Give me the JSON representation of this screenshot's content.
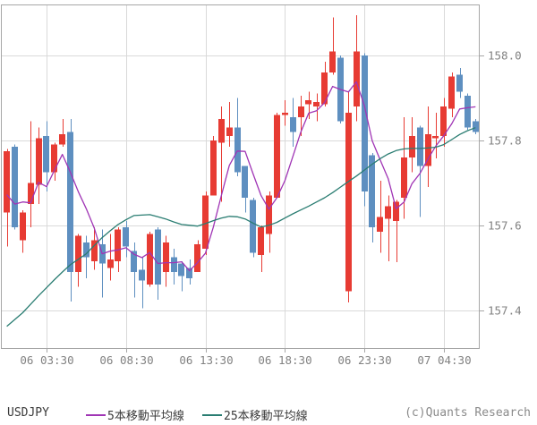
{
  "chart_data": {
    "type": "candlestick",
    "symbol": "USDJPY",
    "bar_interval_minutes": 30,
    "grid": true,
    "legend_position": "bottom",
    "ylim": [
      157.309,
      158.12
    ],
    "y_ticks": [
      158.0,
      157.8,
      157.6,
      157.4
    ],
    "y_tick_labels": [
      "158.0",
      "157.8",
      "157.6",
      "157.4"
    ],
    "x_tick_labels": [
      "06 03:30",
      "06 08:30",
      "06 13:30",
      "06 18:30",
      "06 23:30",
      "07 04:30"
    ],
    "x_tick_bar_indices": [
      5,
      15,
      25,
      35,
      45,
      55
    ],
    "colors": {
      "up": "#e73b33",
      "down": "#5e8fc0",
      "ma5": "#a035b5",
      "ma25": "#2a7d72",
      "grid": "#d9d9d9",
      "frame": "#a6a6a6",
      "tick_text": "#828282"
    },
    "candles": [
      [
        157.63,
        157.78,
        157.55,
        157.775
      ],
      [
        157.785,
        157.79,
        157.59,
        157.595
      ],
      [
        157.565,
        157.635,
        157.535,
        157.63
      ],
      [
        157.65,
        157.845,
        157.595,
        157.7
      ],
      [
        157.695,
        157.83,
        157.65,
        157.805
      ],
      [
        157.81,
        157.845,
        157.68,
        157.725
      ],
      [
        157.725,
        157.795,
        157.705,
        157.79
      ],
      [
        157.79,
        157.85,
        157.785,
        157.815
      ],
      [
        157.82,
        157.85,
        157.42,
        157.49
      ],
      [
        157.49,
        157.58,
        157.455,
        157.575
      ],
      [
        157.56,
        157.575,
        157.475,
        157.525
      ],
      [
        157.515,
        157.595,
        157.495,
        157.565
      ],
      [
        157.555,
        157.59,
        157.43,
        157.51
      ],
      [
        157.5,
        157.58,
        157.47,
        157.52
      ],
      [
        157.515,
        157.595,
        157.49,
        157.59
      ],
      [
        157.595,
        157.61,
        157.525,
        157.55
      ],
      [
        157.54,
        157.56,
        157.43,
        157.49
      ],
      [
        157.495,
        157.525,
        157.405,
        157.47
      ],
      [
        157.46,
        157.585,
        157.455,
        157.58
      ],
      [
        157.59,
        157.595,
        157.425,
        157.46
      ],
      [
        157.49,
        157.575,
        157.455,
        157.56
      ],
      [
        157.525,
        157.545,
        157.46,
        157.49
      ],
      [
        157.51,
        157.515,
        157.445,
        157.48
      ],
      [
        157.5,
        157.52,
        157.46,
        157.475
      ],
      [
        157.49,
        157.565,
        157.49,
        157.555
      ],
      [
        157.545,
        157.68,
        157.53,
        157.67
      ],
      [
        157.67,
        157.81,
        157.67,
        157.8
      ],
      [
        157.795,
        157.88,
        157.655,
        157.85
      ],
      [
        157.81,
        157.89,
        157.785,
        157.83
      ],
      [
        157.83,
        157.9,
        157.715,
        157.725
      ],
      [
        157.74,
        157.74,
        157.63,
        157.665
      ],
      [
        157.66,
        157.665,
        157.525,
        157.535
      ],
      [
        157.53,
        157.6,
        157.49,
        157.595
      ],
      [
        157.58,
        157.68,
        157.535,
        157.67
      ],
      [
        157.665,
        157.865,
        157.665,
        157.86
      ],
      [
        157.86,
        157.895,
        157.835,
        157.865
      ],
      [
        157.855,
        157.9,
        157.785,
        157.82
      ],
      [
        157.855,
        157.905,
        157.81,
        157.88
      ],
      [
        157.885,
        157.915,
        157.85,
        157.895
      ],
      [
        157.88,
        157.91,
        157.845,
        157.89
      ],
      [
        157.885,
        157.985,
        157.88,
        157.96
      ],
      [
        157.96,
        158.09,
        157.955,
        158.01
      ],
      [
        157.995,
        158.0,
        157.84,
        157.845
      ],
      [
        157.445,
        157.915,
        157.418,
        157.865
      ],
      [
        157.88,
        158.095,
        157.845,
        158.01
      ],
      [
        158.0,
        158.005,
        157.645,
        157.68
      ],
      [
        157.765,
        157.77,
        157.56,
        157.595
      ],
      [
        157.585,
        157.705,
        157.535,
        157.62
      ],
      [
        157.615,
        157.67,
        157.515,
        157.645
      ],
      [
        157.61,
        157.66,
        157.513,
        157.655
      ],
      [
        157.665,
        157.855,
        157.615,
        157.76
      ],
      [
        157.76,
        157.855,
        157.725,
        157.81
      ],
      [
        157.83,
        157.835,
        157.62,
        157.74
      ],
      [
        157.74,
        157.88,
        157.69,
        157.815
      ],
      [
        157.805,
        157.865,
        157.758,
        157.81
      ],
      [
        157.81,
        157.9,
        157.785,
        157.88
      ],
      [
        157.875,
        157.96,
        157.855,
        157.95
      ],
      [
        157.955,
        157.97,
        157.9,
        157.915
      ],
      [
        157.905,
        157.91,
        157.825,
        157.83
      ],
      [
        157.845,
        157.85,
        157.815,
        157.82
      ]
    ],
    "series": [
      {
        "name": "5本移動平均線",
        "color": "#a035b5",
        "values": [
          157.672,
          157.65,
          157.655,
          157.653,
          157.701,
          157.691,
          157.73,
          157.767,
          157.725,
          157.679,
          157.639,
          157.594,
          157.533,
          157.539,
          157.542,
          157.547,
          157.532,
          157.524,
          157.536,
          157.51,
          157.512,
          157.512,
          157.514,
          157.493,
          157.512,
          157.534,
          157.596,
          157.67,
          157.741,
          157.775,
          157.774,
          157.721,
          157.67,
          157.638,
          157.665,
          157.705,
          157.762,
          157.819,
          157.864,
          157.87,
          157.889,
          157.927,
          157.92,
          157.914,
          157.938,
          157.882,
          157.799,
          157.754,
          157.71,
          157.639,
          157.655,
          157.698,
          157.722,
          157.756,
          157.787,
          157.811,
          157.839,
          157.874,
          157.877,
          157.879
        ]
      },
      {
        "name": "25本移動平均線",
        "color": "#2a7d72",
        "values": [
          157.362,
          157.378,
          157.394,
          157.414,
          157.434,
          157.453,
          157.472,
          157.49,
          157.507,
          157.52,
          157.533,
          157.552,
          157.571,
          157.587,
          157.602,
          157.613,
          157.623,
          157.624,
          157.625,
          157.62,
          157.615,
          157.608,
          157.602,
          157.6,
          157.598,
          157.604,
          157.611,
          157.617,
          157.621,
          157.62,
          157.615,
          157.605,
          157.596,
          157.6,
          157.607,
          157.617,
          157.627,
          157.636,
          157.645,
          157.655,
          157.665,
          157.677,
          157.69,
          157.703,
          157.716,
          157.73,
          157.744,
          157.757,
          157.768,
          157.776,
          157.78,
          157.781,
          157.781,
          157.782,
          157.784,
          157.79,
          157.802,
          157.814,
          157.823,
          157.83
        ]
      }
    ]
  },
  "footer": {
    "symbol_label": "USDJPY",
    "legend": [
      {
        "label": "5本移動平均線",
        "color": "#a035b5"
      },
      {
        "label": "25本移動平均線",
        "color": "#2a7d72"
      }
    ],
    "copyright": "(c)Quants Research"
  }
}
